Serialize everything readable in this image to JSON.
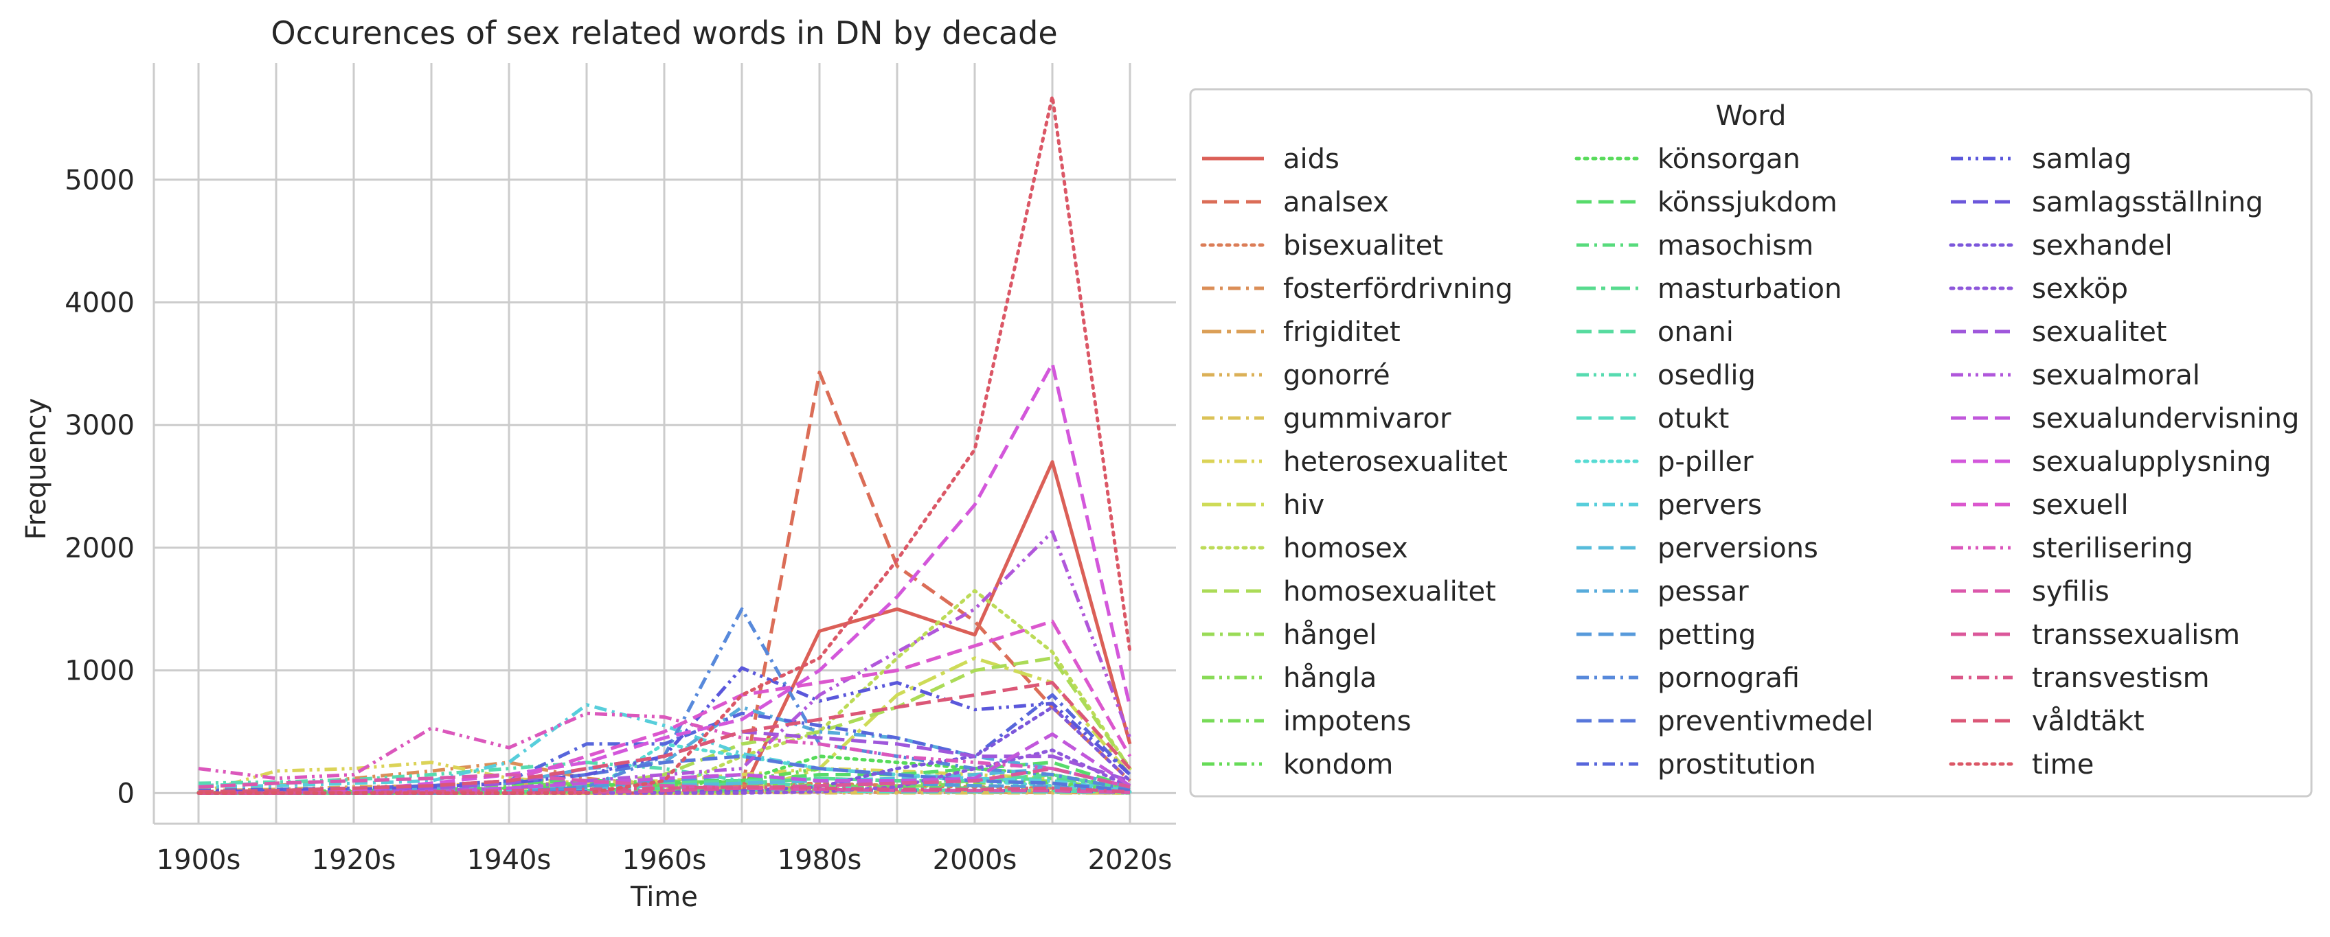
{
  "chart_data": {
    "type": "line",
    "title": "Occurences of sex related words in DN by decade",
    "xlabel": "Time",
    "ylabel": "Frequency",
    "legend_title": "Word",
    "legend_position": "right",
    "grid": true,
    "ylim": [
      -250,
      5950
    ],
    "yticks": [
      0,
      1000,
      2000,
      3000,
      4000,
      5000
    ],
    "categories": [
      "1900s",
      "1910s",
      "1920s",
      "1930s",
      "1940s",
      "1950s",
      "1960s",
      "1970s",
      "1980s",
      "1990s",
      "2000s",
      "2010s",
      "2020s"
    ],
    "xticklabels": [
      "1900s",
      "1920s",
      "1940s",
      "1960s",
      "1980s",
      "2000s",
      "2020s"
    ],
    "series": [
      {
        "name": "aids",
        "color": "#db5f57",
        "dash": "solid",
        "values": [
          0,
          0,
          0,
          0,
          0,
          0,
          0,
          0,
          1320,
          1500,
          1290,
          2700,
          400
        ]
      },
      {
        "name": "analsex",
        "color": "#db6d57",
        "dash": "dashed",
        "values": [
          0,
          0,
          0,
          0,
          0,
          0,
          0,
          20,
          3430,
          1850,
          1400,
          700,
          100
        ]
      },
      {
        "name": "bisexualitet",
        "color": "#db7d57",
        "dash": "dotted",
        "values": [
          0,
          0,
          0,
          0,
          0,
          5,
          20,
          60,
          80,
          60,
          50,
          40,
          10
        ]
      },
      {
        "name": "fosterfördrivning",
        "color": "#db8e57",
        "dash": "dashdot",
        "values": [
          40,
          60,
          120,
          180,
          250,
          120,
          60,
          20,
          10,
          5,
          5,
          5,
          2
        ]
      },
      {
        "name": "frigiditet",
        "color": "#db9f57",
        "dash": "longdashdot",
        "values": [
          0,
          5,
          10,
          20,
          40,
          60,
          80,
          60,
          30,
          10,
          5,
          5,
          0
        ]
      },
      {
        "name": "gonorré",
        "color": "#dbb057",
        "dash": "dashdotdot",
        "values": [
          20,
          30,
          50,
          60,
          80,
          70,
          40,
          30,
          20,
          20,
          20,
          30,
          10
        ]
      },
      {
        "name": "gummivaror",
        "color": "#dbc257",
        "dash": "dashdot",
        "values": [
          10,
          20,
          40,
          60,
          50,
          30,
          10,
          5,
          2,
          2,
          2,
          2,
          0
        ]
      },
      {
        "name": "heterosexualitet",
        "color": "#dbd357",
        "dash": "dashdotdot",
        "values": [
          0,
          180,
          200,
          250,
          120,
          80,
          100,
          150,
          200,
          180,
          150,
          120,
          30
        ]
      },
      {
        "name": "hiv",
        "color": "#cedb57",
        "dash": "longdashdot",
        "values": [
          0,
          0,
          0,
          0,
          0,
          0,
          0,
          0,
          200,
          800,
          1100,
          900,
          150
        ]
      },
      {
        "name": "homosex",
        "color": "#bcdb57",
        "dash": "dotted",
        "values": [
          0,
          0,
          0,
          0,
          0,
          0,
          20,
          300,
          500,
          1100,
          1650,
          1150,
          200
        ]
      },
      {
        "name": "homosexualitet",
        "color": "#abdb57",
        "dash": "dashed",
        "values": [
          0,
          0,
          5,
          10,
          20,
          60,
          150,
          400,
          500,
          700,
          1000,
          1100,
          200
        ]
      },
      {
        "name": "hångel",
        "color": "#9adb57",
        "dash": "dashdot",
        "values": [
          0,
          0,
          0,
          0,
          0,
          5,
          10,
          20,
          40,
          60,
          100,
          150,
          30
        ]
      },
      {
        "name": "hångla",
        "color": "#89db57",
        "dash": "dashdotdot",
        "values": [
          0,
          0,
          0,
          0,
          0,
          5,
          10,
          20,
          30,
          50,
          80,
          100,
          20
        ]
      },
      {
        "name": "impotens",
        "color": "#77db57",
        "dash": "dashdot",
        "values": [
          10,
          20,
          30,
          40,
          60,
          80,
          100,
          80,
          60,
          50,
          40,
          30,
          10
        ]
      },
      {
        "name": "kondom",
        "color": "#66db57",
        "dash": "dashdotdot",
        "values": [
          0,
          0,
          0,
          5,
          10,
          20,
          60,
          100,
          200,
          150,
          100,
          80,
          20
        ]
      },
      {
        "name": "könsorgan",
        "color": "#57db5a",
        "dash": "dotted",
        "values": [
          5,
          10,
          20,
          30,
          40,
          60,
          80,
          100,
          300,
          250,
          200,
          150,
          40
        ]
      },
      {
        "name": "könssjukdom",
        "color": "#57db6b",
        "dash": "dashed",
        "values": [
          10,
          20,
          40,
          60,
          80,
          100,
          100,
          100,
          150,
          150,
          200,
          250,
          50
        ]
      },
      {
        "name": "masochism",
        "color": "#57db7c",
        "dash": "dashdot",
        "values": [
          0,
          5,
          5,
          10,
          10,
          20,
          20,
          30,
          40,
          40,
          40,
          40,
          10
        ]
      },
      {
        "name": "masturbation",
        "color": "#57db8e",
        "dash": "longdashdot",
        "values": [
          0,
          0,
          0,
          5,
          10,
          20,
          40,
          80,
          120,
          100,
          100,
          120,
          30
        ]
      },
      {
        "name": "onani",
        "color": "#57db9f",
        "dash": "dashed",
        "values": [
          5,
          10,
          20,
          30,
          40,
          60,
          80,
          100,
          120,
          100,
          100,
          150,
          30
        ]
      },
      {
        "name": "osedlig",
        "color": "#57dbb0",
        "dash": "dashdotdot",
        "values": [
          80,
          90,
          110,
          150,
          200,
          250,
          200,
          100,
          50,
          30,
          20,
          20,
          5
        ]
      },
      {
        "name": "otukt",
        "color": "#57dbc1",
        "dash": "dashed",
        "values": [
          60,
          80,
          100,
          120,
          150,
          100,
          60,
          30,
          20,
          10,
          10,
          10,
          2
        ]
      },
      {
        "name": "p-piller",
        "color": "#57dbd3",
        "dash": "dotted",
        "values": [
          0,
          0,
          0,
          0,
          0,
          0,
          400,
          300,
          200,
          150,
          100,
          60,
          10
        ]
      },
      {
        "name": "pervers",
        "color": "#57cedb",
        "dash": "dashdot",
        "values": [
          50,
          60,
          80,
          100,
          250,
          720,
          550,
          320,
          200,
          150,
          120,
          100,
          20
        ]
      },
      {
        "name": "perversions",
        "color": "#57bcdb",
        "dash": "dashed",
        "values": [
          0,
          0,
          5,
          10,
          20,
          40,
          60,
          80,
          100,
          120,
          150,
          200,
          50
        ]
      },
      {
        "name": "pessar",
        "color": "#57abdb",
        "dash": "dashdot",
        "values": [
          0,
          10,
          20,
          40,
          80,
          200,
          250,
          700,
          500,
          450,
          300,
          200,
          50
        ]
      },
      {
        "name": "petting",
        "color": "#579adb",
        "dash": "dashed",
        "values": [
          0,
          0,
          0,
          0,
          0,
          50,
          100,
          150,
          100,
          80,
          60,
          50,
          10
        ]
      },
      {
        "name": "pornografi",
        "color": "#5789db",
        "dash": "dashdot",
        "values": [
          0,
          0,
          0,
          0,
          10,
          50,
          300,
          1500,
          400,
          300,
          200,
          150,
          30
        ]
      },
      {
        "name": "preventivmedel",
        "color": "#5777db",
        "dash": "dashed",
        "values": [
          5,
          10,
          20,
          40,
          80,
          150,
          250,
          300,
          200,
          150,
          100,
          80,
          20
        ]
      },
      {
        "name": "prostitution",
        "color": "#5766db",
        "dash": "dashdot",
        "values": [
          20,
          30,
          40,
          60,
          100,
          400,
          400,
          650,
          550,
          450,
          300,
          800,
          150
        ]
      },
      {
        "name": "samlag",
        "color": "#5a57db",
        "dash": "dashdotdot",
        "values": [
          10,
          20,
          30,
          50,
          80,
          150,
          300,
          1020,
          750,
          900,
          680,
          730,
          150
        ]
      },
      {
        "name": "samlagsställning",
        "color": "#6b57db",
        "dash": "dashed",
        "values": [
          0,
          0,
          0,
          0,
          0,
          10,
          20,
          40,
          30,
          20,
          20,
          20,
          5
        ]
      },
      {
        "name": "sexhandel",
        "color": "#7c57db",
        "dash": "dotted",
        "values": [
          0,
          0,
          0,
          0,
          0,
          0,
          5,
          20,
          50,
          200,
          300,
          700,
          100
        ]
      },
      {
        "name": "sexköp",
        "color": "#8e57db",
        "dash": "dotted",
        "values": [
          0,
          0,
          0,
          0,
          0,
          0,
          0,
          0,
          10,
          50,
          200,
          350,
          50
        ]
      },
      {
        "name": "sexualitet",
        "color": "#9f57db",
        "dash": "dashed",
        "values": [
          5,
          10,
          20,
          40,
          80,
          200,
          300,
          500,
          450,
          400,
          300,
          300,
          100
        ]
      },
      {
        "name": "sexualmoral",
        "color": "#b057db",
        "dash": "dashdotdot",
        "values": [
          0,
          5,
          10,
          20,
          40,
          100,
          150,
          200,
          800,
          1150,
          1500,
          2130,
          450
        ]
      },
      {
        "name": "sexualundervisning",
        "color": "#c157db",
        "dash": "dashed",
        "values": [
          0,
          0,
          5,
          10,
          40,
          80,
          120,
          150,
          100,
          100,
          120,
          480,
          60
        ]
      },
      {
        "name": "sexualupplysning",
        "color": "#d357db",
        "dash": "dashed",
        "values": [
          0,
          5,
          20,
          80,
          150,
          250,
          450,
          600,
          1000,
          1600,
          2350,
          3500,
          700
        ]
      },
      {
        "name": "sexuell",
        "color": "#db57ce",
        "dash": "dashed",
        "values": [
          10,
          20,
          40,
          60,
          100,
          300,
          500,
          800,
          900,
          1000,
          1200,
          1400,
          300
        ]
      },
      {
        "name": "sterilisering",
        "color": "#db57bc",
        "dash": "dashdotdot",
        "values": [
          200,
          120,
          150,
          530,
          370,
          650,
          620,
          450,
          400,
          300,
          250,
          200,
          50
        ]
      },
      {
        "name": "syfilis",
        "color": "#db57ab",
        "dash": "dashed",
        "values": [
          50,
          80,
          100,
          120,
          150,
          100,
          60,
          40,
          30,
          20,
          20,
          20,
          5
        ]
      },
      {
        "name": "transsexualism",
        "color": "#db579a",
        "dash": "dashed",
        "values": [
          0,
          0,
          0,
          0,
          0,
          5,
          20,
          40,
          60,
          80,
          100,
          200,
          50
        ]
      },
      {
        "name": "transvestism",
        "color": "#db5789",
        "dash": "dashdot",
        "values": [
          0,
          0,
          5,
          10,
          20,
          30,
          40,
          50,
          40,
          30,
          30,
          40,
          10
        ]
      },
      {
        "name": "våldtäkt",
        "color": "#db5777",
        "dash": "dashed",
        "values": [
          10,
          20,
          40,
          60,
          100,
          200,
          300,
          500,
          600,
          700,
          800,
          900,
          200
        ]
      },
      {
        "name": "time",
        "color": "#db5766",
        "dash": "dotted",
        "values": [
          0,
          0,
          0,
          0,
          0,
          0,
          100,
          800,
          1100,
          1900,
          2800,
          5680,
          1150
        ]
      }
    ]
  }
}
